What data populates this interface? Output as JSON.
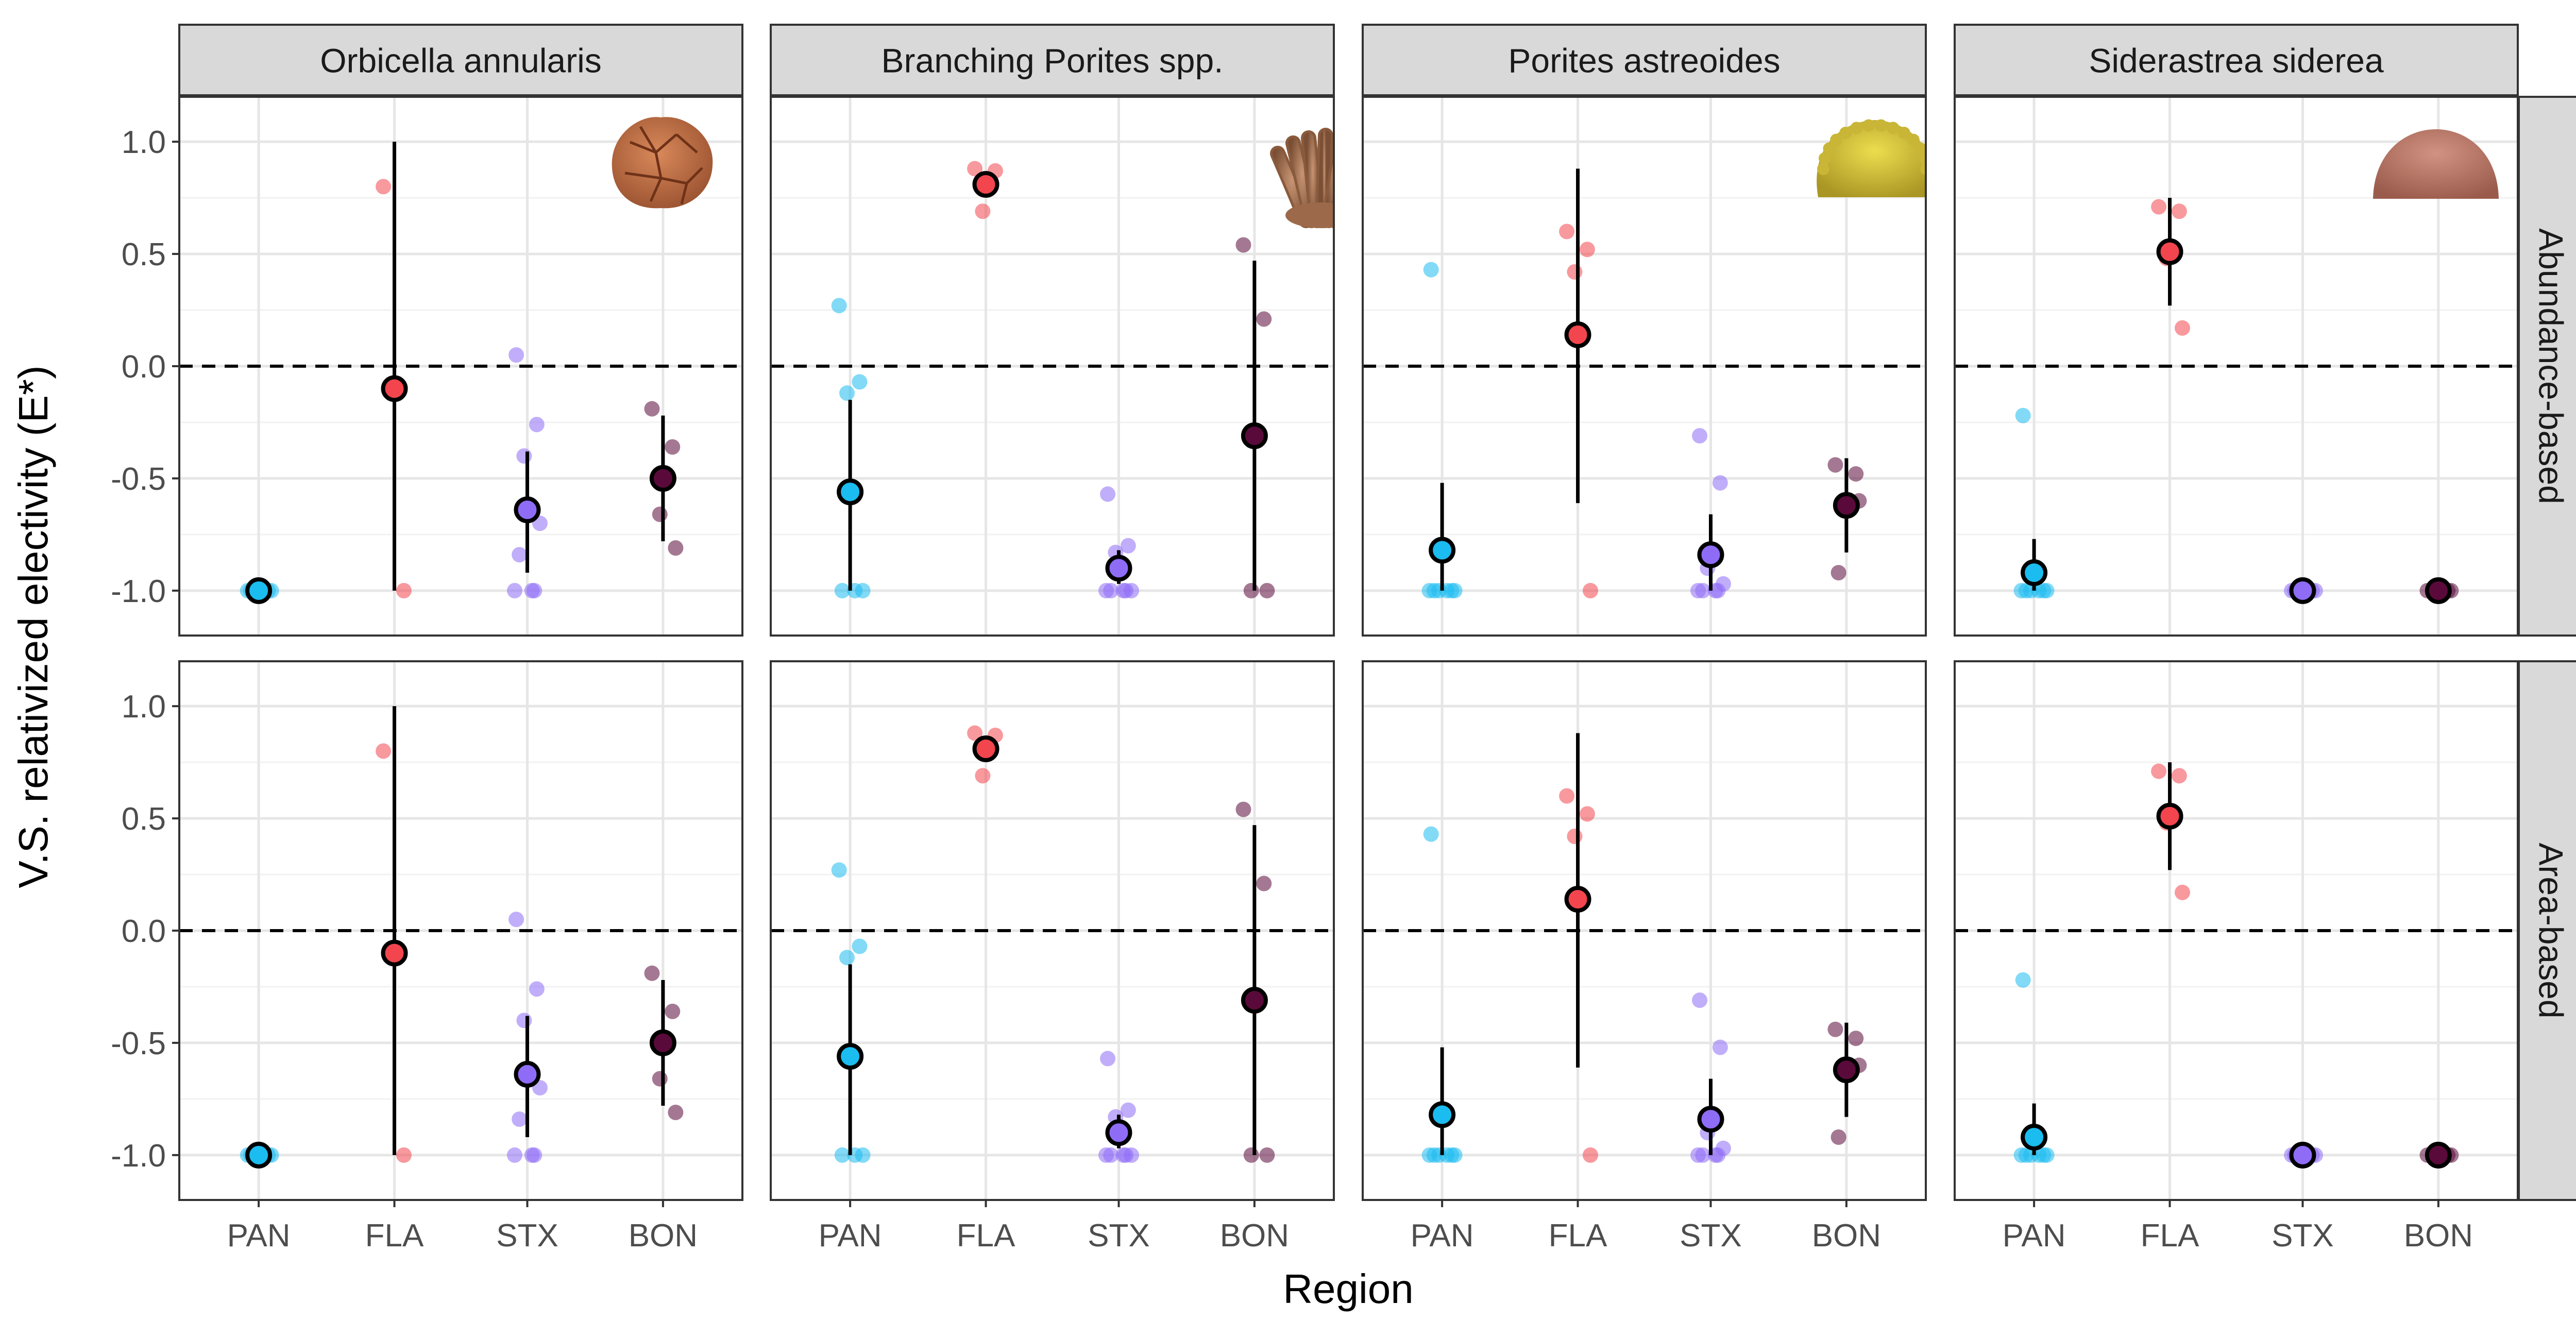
{
  "chart_data": {
    "type": "scatter",
    "ylabel": "V.S. relativized electivity (E*)",
    "xlabel": "Region",
    "categories": [
      "PAN",
      "FLA",
      "STX",
      "BON"
    ],
    "ylim": [
      -1.2,
      1.2
    ],
    "y_ticks": [
      "1.0",
      "0.5",
      "0.0",
      "-0.5",
      "-1.0"
    ],
    "reference_line": 0.0,
    "columns": [
      "Orbicella annularis",
      "Branching Porites spp.",
      "Porites astreoides",
      "Siderastrea siderea"
    ],
    "rows": [
      "Abundance-based",
      "Area-based"
    ],
    "colors": {
      "PAN": "#1bbcf0",
      "FLA": "#f2454e",
      "STX": "#8e6cf6",
      "BON": "#5a0a3a"
    },
    "icons": [
      "boulder-coral-icon",
      "branching-coral-icon",
      "mustard-hill-coral-icon",
      "massive-starlet-coral-icon"
    ],
    "panels": [
      {
        "row": "Abundance-based",
        "column": "Orbicella annularis",
        "groups": [
          {
            "region": "PAN",
            "mean": -1.0,
            "ci": [
              -1.0,
              -1.0
            ],
            "points": [
              -1.0,
              -1.0,
              -1.0,
              -1.0,
              -1.0
            ]
          },
          {
            "region": "FLA",
            "mean": -0.1,
            "ci": [
              -1.0,
              1.0
            ],
            "points": [
              0.8,
              -1.0
            ]
          },
          {
            "region": "STX",
            "mean": -0.64,
            "ci": [
              -0.92,
              -0.38
            ],
            "points": [
              0.05,
              -0.26,
              -0.4,
              -0.7,
              -0.84,
              -1.0,
              -1.0,
              -1.0
            ]
          },
          {
            "region": "BON",
            "mean": -0.5,
            "ci": [
              -0.78,
              -0.22
            ],
            "points": [
              -0.19,
              -0.36,
              -0.66,
              -0.81
            ]
          }
        ]
      },
      {
        "row": "Abundance-based",
        "column": "Branching Porites spp.",
        "groups": [
          {
            "region": "PAN",
            "mean": -0.56,
            "ci": [
              -1.0,
              -0.15
            ],
            "points": [
              0.27,
              -0.07,
              -0.12,
              -1.0,
              -1.0,
              -1.0
            ]
          },
          {
            "region": "FLA",
            "mean": 0.81,
            "ci": [
              0.76,
              0.86
            ],
            "points": [
              0.88,
              0.87,
              0.69
            ]
          },
          {
            "region": "STX",
            "mean": -0.9,
            "ci": [
              -0.97,
              -0.82
            ],
            "points": [
              -0.57,
              -0.8,
              -0.83,
              -1.0,
              -1.0,
              -1.0,
              -1.0,
              -1.0
            ]
          },
          {
            "region": "BON",
            "mean": -0.31,
            "ci": [
              -1.0,
              0.47
            ],
            "points": [
              0.54,
              0.21,
              -1.0,
              -1.0
            ]
          }
        ]
      },
      {
        "row": "Abundance-based",
        "column": "Porites astreoides",
        "groups": [
          {
            "region": "PAN",
            "mean": -0.82,
            "ci": [
              -1.0,
              -0.52
            ],
            "points": [
              0.43,
              -1.0,
              -1.0,
              -1.0,
              -1.0,
              -1.0,
              -1.0
            ]
          },
          {
            "region": "FLA",
            "mean": 0.14,
            "ci": [
              -0.61,
              0.88
            ],
            "points": [
              0.6,
              0.52,
              0.42,
              -1.0
            ]
          },
          {
            "region": "STX",
            "mean": -0.84,
            "ci": [
              -1.0,
              -0.66
            ],
            "points": [
              -0.31,
              -0.52,
              -0.9,
              -0.97,
              -1.0,
              -1.0,
              -1.0,
              -1.0
            ]
          },
          {
            "region": "BON",
            "mean": -0.62,
            "ci": [
              -0.83,
              -0.41
            ],
            "points": [
              -0.44,
              -0.48,
              -0.6,
              -0.6,
              -0.92
            ]
          }
        ]
      },
      {
        "row": "Abundance-based",
        "column": "Siderastrea siderea",
        "groups": [
          {
            "region": "PAN",
            "mean": -0.92,
            "ci": [
              -1.0,
              -0.77
            ],
            "points": [
              -0.22,
              -1.0,
              -1.0,
              -1.0,
              -1.0,
              -1.0,
              -1.0
            ]
          },
          {
            "region": "FLA",
            "mean": 0.51,
            "ci": [
              0.27,
              0.75
            ],
            "points": [
              0.71,
              0.69,
              0.48,
              0.17
            ]
          },
          {
            "region": "STX",
            "mean": -1.0,
            "ci": [
              -1.0,
              -1.0
            ],
            "points": [
              -1.0,
              -1.0,
              -1.0,
              -1.0,
              -1.0
            ]
          },
          {
            "region": "BON",
            "mean": -1.0,
            "ci": [
              -1.0,
              -1.0
            ],
            "points": [
              -1.0,
              -1.0,
              -1.0,
              -1.0
            ]
          }
        ]
      },
      {
        "row": "Area-based",
        "column": "Orbicella annularis",
        "groups": [
          {
            "region": "PAN",
            "mean": -1.0,
            "ci": [
              -1.0,
              -1.0
            ],
            "points": [
              -1.0,
              -1.0,
              -1.0,
              -1.0,
              -1.0
            ]
          },
          {
            "region": "FLA",
            "mean": -0.1,
            "ci": [
              -1.0,
              1.0
            ],
            "points": [
              0.8,
              -1.0
            ]
          },
          {
            "region": "STX",
            "mean": -0.64,
            "ci": [
              -0.92,
              -0.38
            ],
            "points": [
              0.05,
              -0.26,
              -0.4,
              -0.7,
              -0.84,
              -1.0,
              -1.0,
              -1.0
            ]
          },
          {
            "region": "BON",
            "mean": -0.5,
            "ci": [
              -0.78,
              -0.22
            ],
            "points": [
              -0.19,
              -0.36,
              -0.66,
              -0.81
            ]
          }
        ]
      },
      {
        "row": "Area-based",
        "column": "Branching Porites spp.",
        "groups": [
          {
            "region": "PAN",
            "mean": -0.56,
            "ci": [
              -1.0,
              -0.15
            ],
            "points": [
              0.27,
              -0.07,
              -0.12,
              -1.0,
              -1.0,
              -1.0
            ]
          },
          {
            "region": "FLA",
            "mean": 0.81,
            "ci": [
              0.76,
              0.86
            ],
            "points": [
              0.88,
              0.87,
              0.69
            ]
          },
          {
            "region": "STX",
            "mean": -0.9,
            "ci": [
              -0.97,
              -0.82
            ],
            "points": [
              -0.57,
              -0.8,
              -0.83,
              -1.0,
              -1.0,
              -1.0,
              -1.0,
              -1.0
            ]
          },
          {
            "region": "BON",
            "mean": -0.31,
            "ci": [
              -1.0,
              0.47
            ],
            "points": [
              0.54,
              0.21,
              -1.0,
              -1.0
            ]
          }
        ]
      },
      {
        "row": "Area-based",
        "column": "Porites astreoides",
        "groups": [
          {
            "region": "PAN",
            "mean": -0.82,
            "ci": [
              -1.0,
              -0.52
            ],
            "points": [
              0.43,
              -1.0,
              -1.0,
              -1.0,
              -1.0,
              -1.0,
              -1.0
            ]
          },
          {
            "region": "FLA",
            "mean": 0.14,
            "ci": [
              -0.61,
              0.88
            ],
            "points": [
              0.6,
              0.52,
              0.42,
              -1.0
            ]
          },
          {
            "region": "STX",
            "mean": -0.84,
            "ci": [
              -1.0,
              -0.66
            ],
            "points": [
              -0.31,
              -0.52,
              -0.9,
              -0.97,
              -1.0,
              -1.0,
              -1.0,
              -1.0
            ]
          },
          {
            "region": "BON",
            "mean": -0.62,
            "ci": [
              -0.83,
              -0.41
            ],
            "points": [
              -0.44,
              -0.48,
              -0.6,
              -0.6,
              -0.92
            ]
          }
        ]
      },
      {
        "row": "Area-based",
        "column": "Siderastrea siderea",
        "groups": [
          {
            "region": "PAN",
            "mean": -0.92,
            "ci": [
              -1.0,
              -0.77
            ],
            "points": [
              -0.22,
              -1.0,
              -1.0,
              -1.0,
              -1.0,
              -1.0,
              -1.0
            ]
          },
          {
            "region": "FLA",
            "mean": 0.51,
            "ci": [
              0.27,
              0.75
            ],
            "points": [
              0.71,
              0.69,
              0.48,
              0.17
            ]
          },
          {
            "region": "STX",
            "mean": -1.0,
            "ci": [
              -1.0,
              -1.0
            ],
            "points": [
              -1.0,
              -1.0,
              -1.0,
              -1.0,
              -1.0
            ]
          },
          {
            "region": "BON",
            "mean": -1.0,
            "ci": [
              -1.0,
              -1.0
            ],
            "points": [
              -1.0,
              -1.0,
              -1.0,
              -1.0
            ]
          }
        ]
      }
    ]
  }
}
